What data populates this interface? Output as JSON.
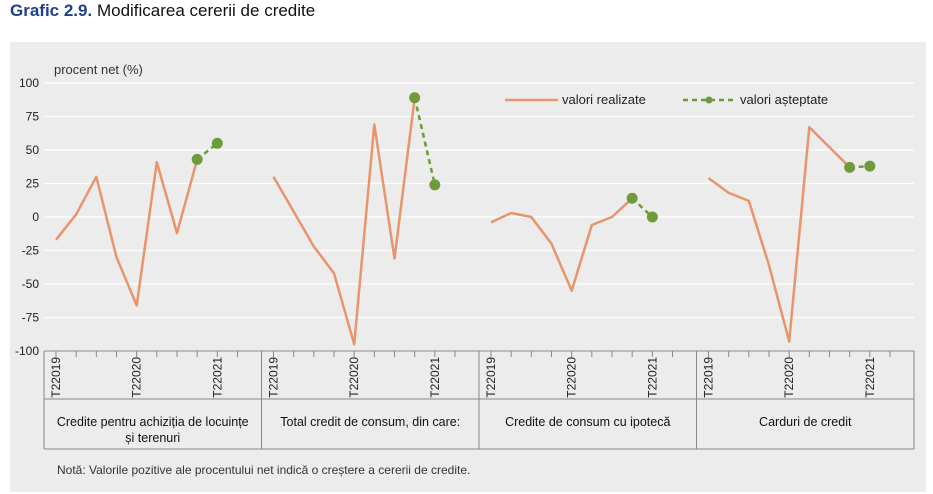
{
  "title": {
    "number": "Grafic 2.9.",
    "text": "Modificarea cererii de credite"
  },
  "note": "Notă: Valorile pozitive ale procentului net indică o creștere a cererii de credite.",
  "colors": {
    "realized": "#e8956c",
    "expected": "#6e9a3a",
    "expected_dot": "#6f9b3b",
    "panel_bg": "#ececec",
    "title_accent": "#1f3f8f"
  },
  "chart_data": {
    "type": "line",
    "ylabel": "procent net (%)",
    "ylim": [
      -100,
      100
    ],
    "yticks": [
      100,
      75,
      50,
      25,
      0,
      -25,
      -50,
      -75,
      -100
    ],
    "grid": true,
    "legend_position": "top-right",
    "x_tick_labels": [
      "T22019",
      "T22020",
      "T22021"
    ],
    "series_legend": [
      {
        "name": "valori realizate",
        "style": "solid"
      },
      {
        "name": "valori așteptate",
        "style": "dashed"
      }
    ],
    "panels": [
      {
        "label": "Credite pentru achiziția de locuințe și terenuri",
        "label_lines": [
          "Credite pentru achiziția de locuințe",
          "și terenuri"
        ],
        "realized": [
          -17,
          2,
          30,
          -30,
          -66,
          41,
          -12,
          43
        ],
        "expected": [
          43,
          55
        ]
      },
      {
        "label": "Total credit de consum, din care:",
        "label_lines": [
          "Total credit de consum, din care:"
        ],
        "realized": [
          30,
          4,
          -22,
          -42,
          -95,
          69,
          -31,
          89
        ],
        "expected": [
          89,
          24
        ]
      },
      {
        "label": "Credite de consum cu ipotecă",
        "label_lines": [
          "Credite de consum cu ipotecă"
        ],
        "realized": [
          -4,
          3,
          0,
          -20,
          -55,
          -6,
          0,
          14
        ],
        "expected": [
          14,
          0
        ]
      },
      {
        "label": "Carduri de credit",
        "label_lines": [
          "Carduri de credit"
        ],
        "realized": [
          29,
          18,
          12,
          -36,
          -93,
          67,
          52,
          37
        ],
        "expected": [
          37,
          38
        ]
      }
    ]
  }
}
